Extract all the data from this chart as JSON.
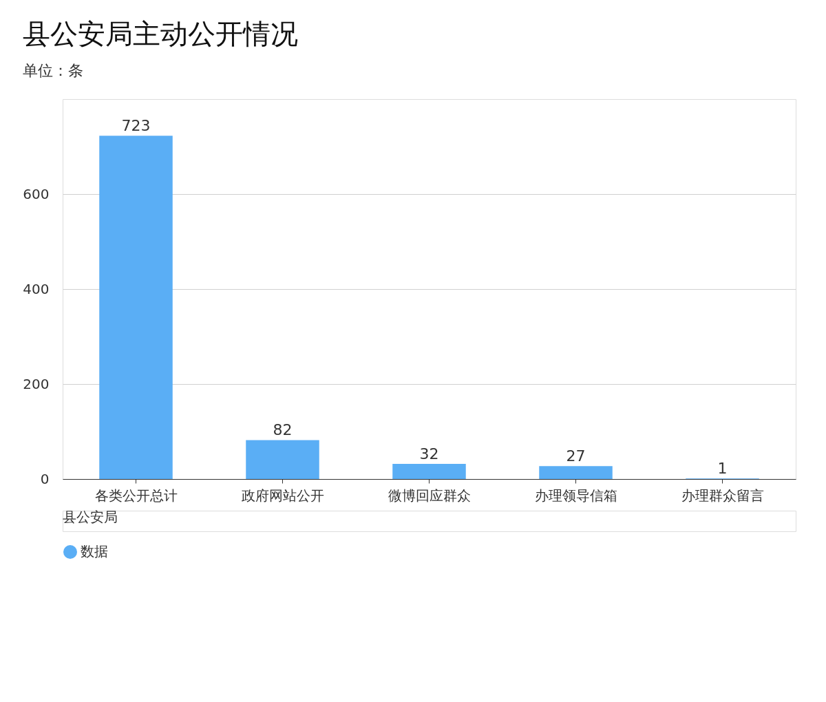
{
  "chart_data": {
    "type": "bar",
    "title": "县公安局主动公开情况",
    "subtitle": "单位：条",
    "categories": [
      "各类公开总计",
      "政府网站公开",
      "微博回应群众",
      "办理领导信箱",
      "办理群众留言"
    ],
    "series": [
      {
        "name": "数据",
        "color": "#5aaef5",
        "values": [
          723,
          82,
          32,
          27,
          1
        ]
      }
    ],
    "ylim": [
      0,
      800
    ],
    "yticks": [
      0,
      200,
      400,
      600
    ],
    "grid": "y",
    "legend": "bottom",
    "data_labels": true,
    "annotations": [
      "县公安局"
    ]
  }
}
